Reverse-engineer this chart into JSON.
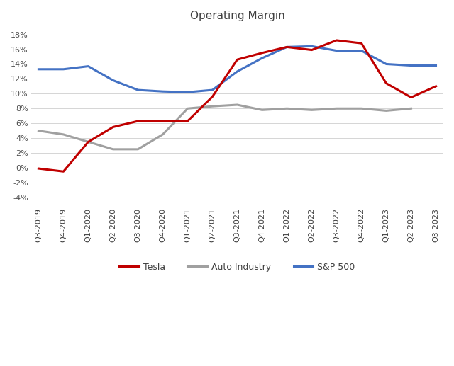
{
  "title": "Operating Margin",
  "categories": [
    "Q3-2019",
    "Q4-2019",
    "Q1-2020",
    "Q2-2020",
    "Q3-2020",
    "Q4-2020",
    "Q1-2021",
    "Q2-2021",
    "Q3-2021",
    "Q4-2021",
    "Q1-2022",
    "Q2-2022",
    "Q3-2022",
    "Q4-2022",
    "Q1-2023",
    "Q2-2023",
    "Q3-2023"
  ],
  "tesla": [
    -0.1,
    -0.5,
    3.5,
    5.5,
    6.3,
    6.3,
    6.3,
    9.6,
    14.6,
    15.5,
    16.3,
    15.9,
    17.2,
    16.8,
    11.4,
    9.5,
    11.0
  ],
  "auto_industry": [
    5.0,
    4.5,
    3.5,
    2.5,
    2.5,
    4.5,
    8.0,
    8.3,
    8.5,
    7.8,
    8.0,
    7.8,
    8.0,
    8.0,
    7.7,
    8.0,
    null
  ],
  "sp500": [
    13.3,
    13.3,
    13.7,
    11.8,
    10.5,
    10.3,
    10.2,
    10.5,
    13.0,
    14.8,
    16.3,
    16.4,
    15.8,
    15.8,
    14.0,
    13.8,
    13.8
  ],
  "tesla_color": "#c00000",
  "auto_color": "#a0a0a0",
  "sp500_color": "#4472c4",
  "ylim": [
    -5,
    19
  ],
  "yticks": [
    -4,
    -2,
    0,
    2,
    4,
    6,
    8,
    10,
    12,
    14,
    16,
    18
  ],
  "background_color": "#ffffff",
  "legend_labels": [
    "Tesla",
    "Auto Industry",
    "S&P 500"
  ],
  "title_fontsize": 11,
  "line_width": 2.2
}
